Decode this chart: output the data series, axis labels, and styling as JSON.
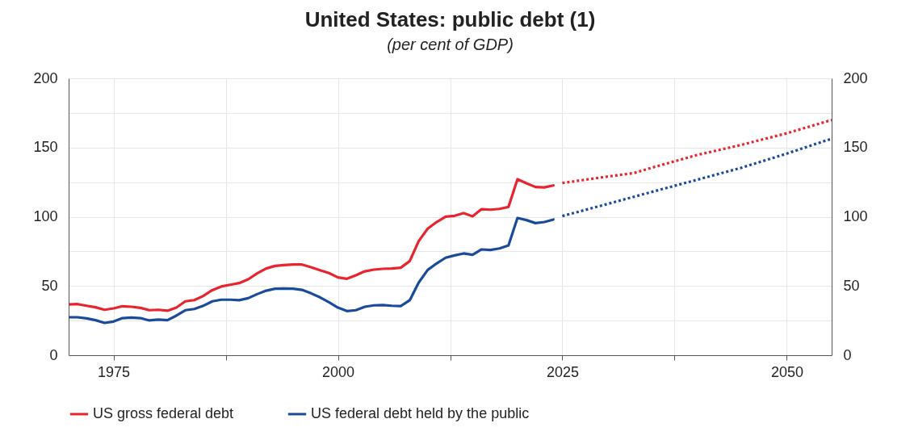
{
  "chart_data": {
    "type": "line",
    "title": "United States: public debt (1)",
    "subtitle": "(per cent of GDP)",
    "xlim": [
      1970,
      2055
    ],
    "xticks": [
      1975,
      {
        "value": 1987.5,
        "label": null
      },
      2000,
      {
        "value": 2012.5,
        "label": null
      },
      2025,
      {
        "value": 2037.5,
        "label": null
      },
      2050
    ],
    "ylim": [
      0,
      200
    ],
    "yticks": [
      0,
      {
        "value": 25,
        "label": null
      },
      50,
      {
        "value": 75,
        "label": null
      },
      100,
      {
        "value": 125,
        "label": null
      },
      150,
      {
        "value": 175,
        "label": null
      },
      200
    ],
    "y2lim": [
      0,
      200
    ],
    "y2ticks": [
      0,
      50,
      100,
      150,
      200
    ],
    "grid": true,
    "legend": "bottom",
    "series": [
      {
        "name": "US gross federal debt",
        "color": "#e8242e",
        "line_style": "solid",
        "x": [
          1970,
          1971,
          1972,
          1973,
          1974,
          1975,
          1976,
          1977,
          1978,
          1979,
          1980,
          1981,
          1982,
          1983,
          1984,
          1985,
          1986,
          1987,
          1988,
          1989,
          1990,
          1991,
          1992,
          1993,
          1994,
          1995,
          1996,
          1997,
          1998,
          1999,
          2000,
          2001,
          2002,
          2003,
          2004,
          2005,
          2006,
          2007,
          2008,
          2009,
          2010,
          2011,
          2012,
          2013,
          2014,
          2015,
          2016,
          2017,
          2018,
          2019,
          2020,
          2021,
          2022,
          2023,
          2024
        ],
        "values": [
          36.7,
          36.9,
          35.7,
          34.6,
          32.8,
          33.8,
          35.4,
          35.0,
          34.2,
          32.5,
          32.8,
          32.1,
          34.4,
          38.9,
          39.8,
          42.8,
          47.0,
          49.6,
          50.9,
          52.1,
          54.8,
          59.1,
          62.6,
          64.5,
          65.1,
          65.5,
          65.5,
          63.6,
          61.4,
          59.3,
          56.2,
          55.2,
          57.7,
          60.6,
          61.8,
          62.4,
          62.6,
          63.2,
          68.0,
          82.4,
          91.4,
          96.2,
          100.1,
          100.7,
          102.6,
          100.3,
          105.5,
          105.1,
          105.7,
          107.1,
          127.1,
          124.2,
          121.5,
          121.2,
          122.6
        ]
      },
      {
        "name": "US federal debt held by the public",
        "color": "#1a4b9b",
        "line_style": "solid",
        "x": [
          1970,
          1971,
          1972,
          1973,
          1974,
          1975,
          1976,
          1977,
          1978,
          1979,
          1980,
          1981,
          1982,
          1983,
          1984,
          1985,
          1986,
          1987,
          1988,
          1989,
          1990,
          1991,
          1992,
          1993,
          1994,
          1995,
          1996,
          1997,
          1998,
          1999,
          2000,
          2001,
          2002,
          2003,
          2004,
          2005,
          2006,
          2007,
          2008,
          2009,
          2010,
          2011,
          2012,
          2013,
          2014,
          2015,
          2016,
          2017,
          2018,
          2019,
          2020,
          2021,
          2022,
          2023,
          2024
        ],
        "values": [
          27.4,
          27.4,
          26.6,
          25.3,
          23.3,
          24.3,
          26.8,
          27.2,
          26.8,
          25.1,
          25.7,
          25.3,
          28.6,
          32.5,
          33.4,
          35.7,
          38.9,
          40.1,
          40.1,
          39.7,
          41.2,
          44.1,
          46.6,
          48.0,
          48.2,
          48.0,
          47.2,
          44.7,
          41.8,
          38.3,
          34.4,
          31.9,
          32.5,
          35.0,
          36.0,
          36.2,
          35.7,
          35.5,
          39.7,
          52.5,
          61.6,
          66.3,
          70.4,
          72.1,
          73.5,
          72.5,
          76.4,
          76.0,
          77.1,
          79.3,
          99.1,
          97.6,
          95.4,
          96.2,
          98.0
        ]
      },
      {
        "color": "#e8242e",
        "line_style": "dotted",
        "x": [
          2025,
          2030,
          2033,
          2035,
          2040,
          2045,
          2050,
          2055
        ],
        "values": [
          124.4,
          129.0,
          131.6,
          135.5,
          144.6,
          152.0,
          160.3,
          169.9
        ]
      },
      {
        "color": "#1a4b9b",
        "line_style": "dotted",
        "x": [
          2025,
          2030,
          2035,
          2040,
          2045,
          2050,
          2055
        ],
        "values": [
          100.5,
          109.2,
          118.0,
          126.7,
          135.5,
          145.6,
          156.4
        ]
      }
    ]
  }
}
